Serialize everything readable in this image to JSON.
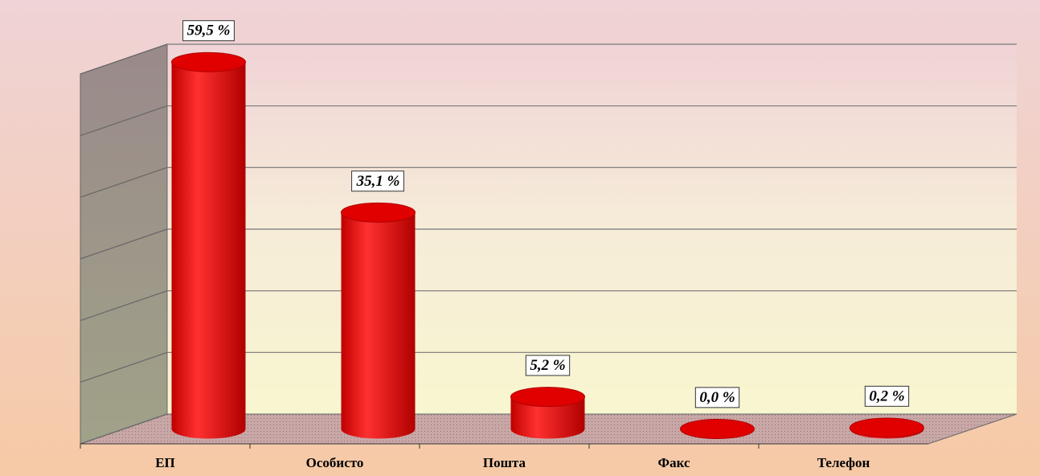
{
  "chart_data": {
    "type": "bar3d",
    "categories": [
      "ЕП",
      "Особисто",
      "Пошта",
      "Факс",
      "Телефон"
    ],
    "values": [
      59.5,
      35.1,
      5.2,
      0.0,
      0.2
    ],
    "value_labels": [
      "59,5 %",
      "35,1 %",
      "5,2 %",
      "0,0 %",
      "0,2 %"
    ],
    "color": "#ff0000",
    "ylim": [
      0,
      60
    ],
    "yticks": [
      0,
      10,
      20,
      30,
      40,
      50,
      60
    ],
    "grid": true
  }
}
